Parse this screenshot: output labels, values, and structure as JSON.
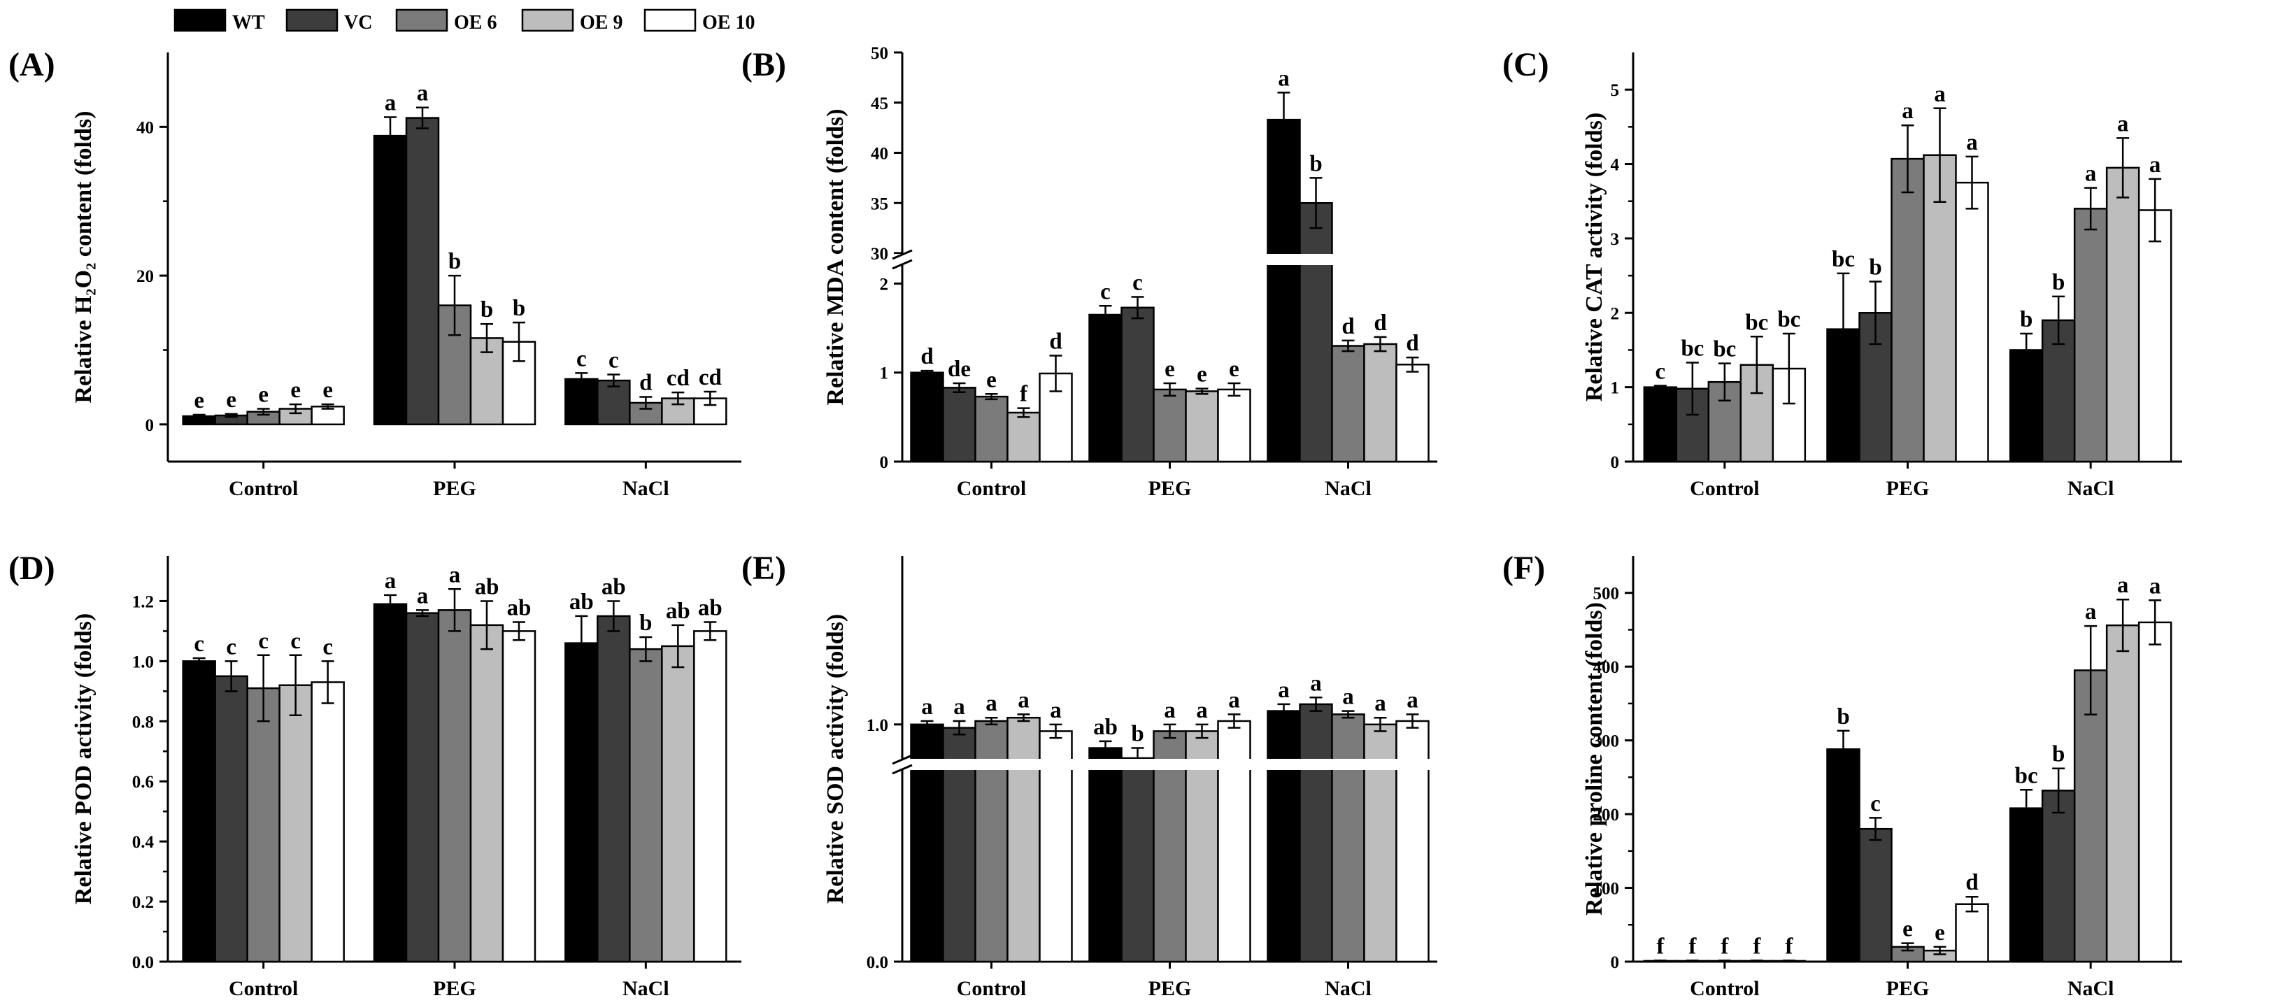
{
  "legend": {
    "series": [
      {
        "name": "WT",
        "color": "#000000"
      },
      {
        "name": "VC",
        "color": "#3d3d3d"
      },
      {
        "name": "OE 6",
        "color": "#7b7b7b"
      },
      {
        "name": "OE 9",
        "color": "#bdbdbd"
      },
      {
        "name": "OE 10",
        "color": "#ffffff"
      }
    ]
  },
  "chart_data": [
    {
      "type": "bar",
      "panel_label": "(A)",
      "ylabel": "Relative H₂O₂ content (folds)",
      "categories": [
        "Control",
        "PEG",
        "NaCl"
      ],
      "ylim": [
        -5,
        50
      ],
      "yticks": [
        0,
        20,
        40
      ],
      "series": [
        {
          "name": "WT",
          "values": [
            1.1,
            38.8,
            6.1
          ],
          "errors": [
            0.2,
            2.5,
            0.8
          ],
          "letters": [
            "e",
            "a",
            "c"
          ]
        },
        {
          "name": "VC",
          "values": [
            1.2,
            41.2,
            5.9
          ],
          "errors": [
            0.2,
            1.4,
            0.8
          ],
          "letters": [
            "e",
            "a",
            "c"
          ]
        },
        {
          "name": "OE 6",
          "values": [
            1.7,
            16.0,
            2.9
          ],
          "errors": [
            0.4,
            4.0,
            0.8
          ],
          "letters": [
            "e",
            "b",
            "d"
          ]
        },
        {
          "name": "OE 9",
          "values": [
            2.1,
            11.6,
            3.5
          ],
          "errors": [
            0.6,
            1.9,
            0.8
          ],
          "letters": [
            "e",
            "b",
            "cd"
          ]
        },
        {
          "name": "OE 10",
          "values": [
            2.4,
            11.1,
            3.5
          ],
          "errors": [
            0.3,
            2.6,
            0.9
          ],
          "letters": [
            "e",
            "b",
            "cd"
          ]
        }
      ]
    },
    {
      "type": "bar",
      "panel_label": "(B)",
      "ylabel": "Relative MDA content (folds)",
      "categories": [
        "Control",
        "PEG",
        "NaCl"
      ],
      "axis_break": true,
      "lower_range": [
        0,
        2.2
      ],
      "upper_range": [
        30,
        50
      ],
      "yticks_lower": [
        0,
        1,
        2
      ],
      "yticks_upper": [
        30,
        35,
        40,
        45,
        50
      ],
      "series": [
        {
          "name": "WT",
          "values": [
            1.0,
            1.65,
            43.3
          ],
          "errors": [
            0.02,
            0.1,
            2.7
          ],
          "letters": [
            "d",
            "c",
            "a"
          ]
        },
        {
          "name": "VC",
          "values": [
            0.83,
            1.73,
            35.0
          ],
          "errors": [
            0.05,
            0.12,
            2.5
          ],
          "letters": [
            "de",
            "c",
            "b"
          ]
        },
        {
          "name": "OE 6",
          "values": [
            0.73,
            0.81,
            1.3
          ],
          "errors": [
            0.03,
            0.07,
            0.06
          ],
          "letters": [
            "e",
            "e",
            "d"
          ]
        },
        {
          "name": "OE 9",
          "values": [
            0.55,
            0.79,
            1.32
          ],
          "errors": [
            0.05,
            0.03,
            0.08
          ],
          "letters": [
            "f",
            "e",
            "d"
          ]
        },
        {
          "name": "OE 10",
          "values": [
            0.99,
            0.81,
            1.09
          ],
          "errors": [
            0.2,
            0.07,
            0.08
          ],
          "letters": [
            "d",
            "e",
            "d"
          ]
        }
      ]
    },
    {
      "type": "bar",
      "panel_label": "(C)",
      "ylabel": "Relative CAT activity (folds)",
      "categories": [
        "Control",
        "PEG",
        "NaCl"
      ],
      "ylim": [
        0,
        5.5
      ],
      "yticks": [
        0,
        1,
        2,
        3,
        4,
        5
      ],
      "series": [
        {
          "name": "WT",
          "values": [
            1.0,
            1.78,
            1.5
          ],
          "errors": [
            0.02,
            0.75,
            0.22
          ],
          "letters": [
            "c",
            "bc",
            "b"
          ]
        },
        {
          "name": "VC",
          "values": [
            0.98,
            2.0,
            1.9
          ],
          "errors": [
            0.35,
            0.42,
            0.32
          ],
          "letters": [
            "bc",
            "b",
            "b"
          ]
        },
        {
          "name": "OE 6",
          "values": [
            1.07,
            4.07,
            3.4
          ],
          "errors": [
            0.25,
            0.45,
            0.28
          ],
          "letters": [
            "bc",
            "a",
            "a"
          ]
        },
        {
          "name": "OE 9",
          "values": [
            1.3,
            4.12,
            3.95
          ],
          "errors": [
            0.38,
            0.63,
            0.4
          ],
          "letters": [
            "bc",
            "a",
            "a"
          ]
        },
        {
          "name": "OE 10",
          "values": [
            1.25,
            3.75,
            3.38
          ],
          "errors": [
            0.47,
            0.35,
            0.42
          ],
          "letters": [
            "bc",
            "a",
            "a"
          ]
        }
      ]
    },
    {
      "type": "bar",
      "panel_label": "(D)",
      "ylabel": "Relative POD activity (folds)",
      "categories": [
        "Control",
        "PEG",
        "NaCl"
      ],
      "ylim": [
        0,
        1.35
      ],
      "yticks": [
        0.0,
        0.2,
        0.4,
        0.6,
        0.8,
        1.0,
        1.2
      ],
      "series": [
        {
          "name": "WT",
          "values": [
            1.0,
            1.19,
            1.06
          ],
          "errors": [
            0.01,
            0.03,
            0.09
          ],
          "letters": [
            "c",
            "a",
            "ab"
          ]
        },
        {
          "name": "VC",
          "values": [
            0.95,
            1.16,
            1.15
          ],
          "errors": [
            0.05,
            0.01,
            0.05
          ],
          "letters": [
            "c",
            "a",
            "ab"
          ]
        },
        {
          "name": "OE 6",
          "values": [
            0.91,
            1.17,
            1.04
          ],
          "errors": [
            0.11,
            0.07,
            0.04
          ],
          "letters": [
            "c",
            "a",
            "b"
          ]
        },
        {
          "name": "OE 9",
          "values": [
            0.92,
            1.12,
            1.05
          ],
          "errors": [
            0.1,
            0.08,
            0.07
          ],
          "letters": [
            "c",
            "ab",
            "ab"
          ]
        },
        {
          "name": "OE 10",
          "values": [
            0.93,
            1.1,
            1.1
          ],
          "errors": [
            0.07,
            0.03,
            0.03
          ],
          "letters": [
            "c",
            "ab",
            "ab"
          ]
        }
      ]
    },
    {
      "type": "bar",
      "panel_label": "(E)",
      "ylabel": "Relative SOD activity (folds)",
      "categories": [
        "Control",
        "PEG",
        "NaCl"
      ],
      "axis_break": true,
      "lower_range": [
        0.0,
        0.1
      ],
      "upper_range": [
        0.9,
        1.5
      ],
      "yticks_lower": [
        0.0
      ],
      "yticks_upper": [
        1.0
      ],
      "series": [
        {
          "name": "WT",
          "values": [
            1.0,
            0.93,
            1.04
          ],
          "errors": [
            0.01,
            0.02,
            0.02
          ],
          "letters": [
            "a",
            "ab",
            "a"
          ]
        },
        {
          "name": "VC",
          "values": [
            0.99,
            0.9,
            1.06
          ],
          "errors": [
            0.02,
            0.03,
            0.02
          ],
          "letters": [
            "a",
            "b",
            "a"
          ]
        },
        {
          "name": "OE 6",
          "values": [
            1.01,
            0.98,
            1.03
          ],
          "errors": [
            0.01,
            0.02,
            0.01
          ],
          "letters": [
            "a",
            "a",
            "a"
          ]
        },
        {
          "name": "OE 9",
          "values": [
            1.02,
            0.98,
            1.0
          ],
          "errors": [
            0.01,
            0.02,
            0.02
          ],
          "letters": [
            "a",
            "a",
            "a"
          ]
        },
        {
          "name": "OE 10",
          "values": [
            0.98,
            1.01,
            1.01
          ],
          "errors": [
            0.02,
            0.02,
            0.02
          ],
          "letters": [
            "a",
            "a",
            "a"
          ]
        }
      ]
    },
    {
      "type": "bar",
      "panel_label": "(F)",
      "ylabel": "Relative proline content (folds)",
      "categories": [
        "Control",
        "PEG",
        "NaCl"
      ],
      "ylim": [
        0,
        550
      ],
      "yticks": [
        0,
        100,
        200,
        300,
        400,
        500
      ],
      "series": [
        {
          "name": "WT",
          "values": [
            1,
            288,
            208
          ],
          "errors": [
            0.5,
            25,
            25
          ],
          "letters": [
            "f",
            "b",
            "bc"
          ]
        },
        {
          "name": "VC",
          "values": [
            1,
            180,
            232
          ],
          "errors": [
            0.5,
            15,
            30
          ],
          "letters": [
            "f",
            "c",
            "b"
          ]
        },
        {
          "name": "OE 6",
          "values": [
            1,
            20,
            395
          ],
          "errors": [
            0.5,
            5,
            60
          ],
          "letters": [
            "f",
            "e",
            "a"
          ]
        },
        {
          "name": "OE 9",
          "values": [
            1,
            15,
            456
          ],
          "errors": [
            0.5,
            5,
            35
          ],
          "letters": [
            "f",
            "e",
            "a"
          ]
        },
        {
          "name": "OE 10",
          "values": [
            1,
            78,
            460
          ],
          "errors": [
            0.5,
            10,
            30
          ],
          "letters": [
            "f",
            "d",
            "a"
          ]
        }
      ]
    }
  ]
}
